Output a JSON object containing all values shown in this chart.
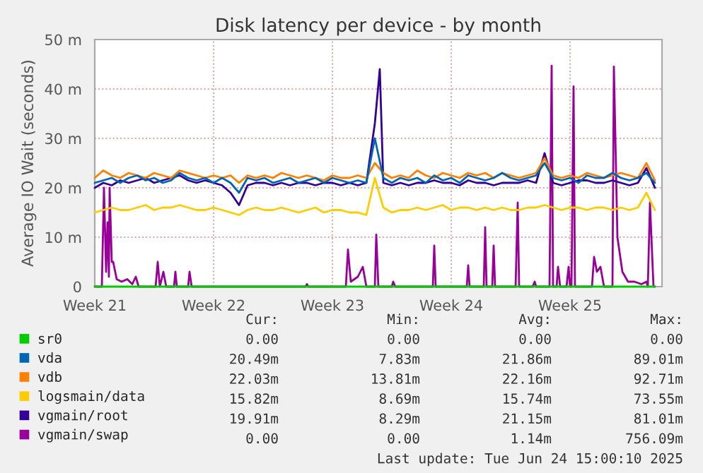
{
  "chart_data": {
    "type": "line",
    "title": "Disk latency per device - by month",
    "ylabel": "Average IO Wait (seconds)",
    "x": [
      "2025-05-19T00:00",
      "2025-05-19T12:00",
      "2025-05-20T00:00",
      "2025-05-20T12:00",
      "2025-05-21T00:00",
      "2025-05-21T12:00",
      "2025-05-22T00:00",
      "2025-05-22T12:00",
      "2025-05-23T00:00",
      "2025-05-23T12:00",
      "2025-05-24T00:00",
      "2025-05-24T12:00",
      "2025-05-25T00:00",
      "2025-05-25T12:00",
      "2025-05-26T00:00",
      "2025-05-26T12:00",
      "2025-05-27T00:00",
      "2025-05-27T12:00",
      "2025-05-28T00:00",
      "2025-05-28T12:00",
      "2025-05-29T00:00",
      "2025-05-29T12:00",
      "2025-05-30T00:00",
      "2025-05-30T12:00",
      "2025-05-31T00:00",
      "2025-05-31T12:00",
      "2025-06-01T00:00",
      "2025-06-01T12:00",
      "2025-06-02T00:00",
      "2025-06-02T12:00",
      "2025-06-03T00:00",
      "2025-06-03T12:00",
      "2025-06-04T00:00",
      "2025-06-04T12:00",
      "2025-06-05T00:00",
      "2025-06-05T12:00",
      "2025-06-06T00:00",
      "2025-06-06T12:00",
      "2025-06-07T00:00",
      "2025-06-07T12:00",
      "2025-06-08T00:00",
      "2025-06-08T12:00",
      "2025-06-09T00:00",
      "2025-06-09T12:00",
      "2025-06-10T00:00",
      "2025-06-10T12:00",
      "2025-06-11T00:00",
      "2025-06-11T12:00",
      "2025-06-12T00:00",
      "2025-06-12T12:00",
      "2025-06-13T00:00",
      "2025-06-13T12:00",
      "2025-06-14T00:00",
      "2025-06-14T12:00",
      "2025-06-15T00:00",
      "2025-06-15T12:00",
      "2025-06-16T00:00",
      "2025-06-16T12:00",
      "2025-06-17T00:00",
      "2025-06-17T12:00",
      "2025-06-18T00:00",
      "2025-06-18T12:00",
      "2025-06-19T00:00",
      "2025-06-19T12:00",
      "2025-06-20T00:00",
      "2025-06-20T12:00",
      "2025-06-21T00:00"
    ],
    "xlim": [
      "2025-05-19T00:00",
      "2025-06-21T10:00"
    ],
    "xticks": [
      {
        "value": "2025-05-19",
        "label": "Week 21"
      },
      {
        "value": "2025-05-26",
        "label": "Week 22"
      },
      {
        "value": "2025-06-02",
        "label": "Week 23"
      },
      {
        "value": "2025-06-09",
        "label": "Week 24"
      },
      {
        "value": "2025-06-16",
        "label": "Week 25"
      }
    ],
    "ylim": [
      0,
      50
    ],
    "yticks": [
      0,
      {
        "value": 10,
        "label": "10 m"
      },
      {
        "value": 20,
        "label": "20 m"
      },
      {
        "value": 30,
        "label": "30 m"
      },
      {
        "value": 40,
        "label": "40 m"
      },
      {
        "value": 50,
        "label": "50 m"
      }
    ],
    "grid": true,
    "legend": "bottom",
    "marker": "none",
    "line_style": "solid",
    "series": [
      {
        "name": "sr0",
        "color": "#00cc00",
        "values": [
          0,
          0,
          0,
          0,
          0,
          0,
          0,
          0,
          0,
          0,
          0,
          0,
          0,
          0,
          0,
          0,
          0,
          0,
          0,
          0,
          0,
          0,
          0,
          0,
          0,
          0,
          0,
          0,
          0,
          0,
          0,
          0,
          0,
          0,
          0,
          0,
          0,
          0,
          0,
          0,
          0,
          0,
          0,
          0,
          0,
          0,
          0,
          0,
          0,
          0,
          0,
          0,
          0,
          0,
          0,
          0,
          0,
          0,
          0,
          0,
          0,
          0,
          0,
          0,
          0,
          0,
          0
        ]
      },
      {
        "name": "vda",
        "color": "#0066b3",
        "values": [
          21,
          21.5,
          22,
          21,
          22,
          22.5,
          21.5,
          22,
          21,
          21.5,
          23,
          22,
          21.5,
          22,
          21,
          22,
          21,
          19,
          22,
          21.5,
          22,
          21,
          21.5,
          22,
          21,
          21.5,
          22,
          21,
          22,
          21.5,
          21,
          21.5,
          21,
          30,
          22,
          21,
          22,
          21.5,
          22,
          21,
          22.5,
          21.5,
          22,
          21,
          22.5,
          22,
          21.5,
          22,
          23,
          22,
          21.5,
          22,
          22.5,
          25,
          22,
          21.5,
          22,
          21,
          22.5,
          22,
          22,
          23,
          22,
          21.5,
          22,
          23,
          21
        ]
      },
      {
        "name": "vdb",
        "color": "#ff8000",
        "values": [
          22,
          23.5,
          22.5,
          22,
          23,
          22.5,
          22,
          23,
          22.5,
          22,
          23.5,
          23,
          22.5,
          22,
          22.5,
          22,
          22.5,
          21,
          22.5,
          22,
          22.5,
          22,
          23,
          22.5,
          22,
          22.5,
          22,
          21.5,
          22.5,
          22,
          22,
          22.5,
          22,
          25,
          23,
          22,
          22.5,
          22,
          23.5,
          22.5,
          22,
          23,
          22.5,
          22,
          23,
          22.5,
          23,
          22,
          23,
          22.5,
          22,
          22.5,
          23,
          26,
          22.5,
          22,
          22.5,
          22,
          23,
          22.5,
          22,
          22.5,
          23,
          22.5,
          22,
          25,
          21.5
        ]
      },
      {
        "name": "logsmain/data",
        "color": "#ffcc00",
        "values": [
          15,
          15.5,
          16,
          15.5,
          15.5,
          16,
          16.5,
          15.5,
          16,
          16,
          16.5,
          16,
          15.5,
          15.5,
          16,
          15.5,
          15,
          14.5,
          15.5,
          16,
          15.5,
          15.5,
          16,
          15.5,
          15,
          15.5,
          16,
          15,
          15.5,
          15.5,
          15,
          15,
          14.5,
          22,
          16,
          15,
          15.5,
          15.5,
          16,
          15.5,
          16,
          16.5,
          15.5,
          16,
          16,
          15.5,
          16,
          15.5,
          16,
          15.5,
          15.5,
          16,
          16,
          16.5,
          16,
          15.5,
          16,
          16,
          15.5,
          16,
          16,
          15.5,
          16,
          15.5,
          16,
          19,
          15.5
        ]
      },
      {
        "name": "vgmain/root",
        "color": "#330099",
        "x": [
          "2025-05-19T00:00",
          "2025-05-19T12:00",
          "2025-05-20T00:00",
          "2025-05-20T12:00",
          "2025-05-21T00:00",
          "2025-05-21T12:00",
          "2025-05-22T00:00",
          "2025-05-22T12:00",
          "2025-05-23T00:00",
          "2025-05-23T12:00",
          "2025-05-24T00:00",
          "2025-05-24T12:00",
          "2025-05-25T00:00",
          "2025-05-25T12:00",
          "2025-05-26T00:00",
          "2025-05-26T12:00",
          "2025-05-27T00:00",
          "2025-05-27T12:00",
          "2025-05-28T00:00",
          "2025-05-28T12:00",
          "2025-05-29T00:00",
          "2025-05-29T12:00",
          "2025-05-30T00:00",
          "2025-05-30T12:00",
          "2025-05-31T00:00",
          "2025-05-31T12:00",
          "2025-06-01T00:00",
          "2025-06-01T12:00",
          "2025-06-02T00:00",
          "2025-06-02T12:00",
          "2025-06-03T00:00",
          "2025-06-03T12:00",
          "2025-06-04T00:00",
          "2025-06-04T12:00",
          "2025-06-04T19:00",
          "2025-06-05T00:00",
          "2025-06-05T12:00",
          "2025-06-06T00:00",
          "2025-06-06T12:00",
          "2025-06-07T00:00",
          "2025-06-07T12:00",
          "2025-06-08T00:00",
          "2025-06-08T12:00",
          "2025-06-09T00:00",
          "2025-06-09T12:00",
          "2025-06-10T00:00",
          "2025-06-10T12:00",
          "2025-06-11T00:00",
          "2025-06-11T12:00",
          "2025-06-12T00:00",
          "2025-06-12T12:00",
          "2025-06-13T00:00",
          "2025-06-13T12:00",
          "2025-06-14T00:00",
          "2025-06-14T12:00",
          "2025-06-15T00:00",
          "2025-06-15T12:00",
          "2025-06-16T00:00",
          "2025-06-16T12:00",
          "2025-06-17T00:00",
          "2025-06-17T12:00",
          "2025-06-18T00:00",
          "2025-06-18T12:00",
          "2025-06-19T00:00",
          "2025-06-19T12:00",
          "2025-06-20T00:00",
          "2025-06-20T12:00",
          "2025-06-21T00:00"
        ],
        "values": [
          20,
          21,
          20.5,
          21.5,
          21,
          21.5,
          22,
          21,
          21.5,
          22,
          22.5,
          21.5,
          21,
          21.5,
          21,
          20.5,
          19,
          16.5,
          20.5,
          21,
          21,
          20.5,
          21,
          20.5,
          21,
          21,
          20.5,
          21,
          21,
          20.5,
          21,
          20.5,
          21,
          33,
          44,
          21,
          20.5,
          21,
          20.5,
          21,
          21,
          21.5,
          21,
          21,
          20.5,
          21.5,
          21,
          21,
          20.5,
          21,
          21,
          21,
          21.5,
          21,
          27,
          21,
          20.5,
          21,
          21.5,
          21.5,
          21,
          21,
          21.5,
          21,
          20.5,
          21,
          24,
          20
        ]
      },
      {
        "name": "vgmain/swap",
        "color": "#990099",
        "x": [
          "2025-05-19T00:00",
          "2025-05-19T10:00",
          "2025-05-19T13:00",
          "2025-05-19T16:00",
          "2025-05-19T18:00",
          "2025-05-19T20:00",
          "2025-05-19T21:00",
          "2025-05-20T00:00",
          "2025-05-20T02:00",
          "2025-05-20T07:00",
          "2025-05-20T14:00",
          "2025-05-20T22:00",
          "2025-05-21T05:00",
          "2025-05-21T10:00",
          "2025-05-21T14:00",
          "2025-05-22T14:00",
          "2025-05-22T17:00",
          "2025-05-22T20:00",
          "2025-05-23T01:00",
          "2025-05-23T05:00",
          "2025-05-23T16:00",
          "2025-05-23T18:00",
          "2025-05-23T20:00",
          "2025-05-24T12:00",
          "2025-05-24T14:00",
          "2025-05-24T17:00",
          "2025-05-31T10:00",
          "2025-05-31T12:00",
          "2025-05-31T14:00",
          "2025-06-02T19:00",
          "2025-06-02T22:00",
          "2025-06-03T02:00",
          "2025-06-03T12:00",
          "2025-06-03T19:00",
          "2025-06-04T00:00",
          "2025-06-04T12:00",
          "2025-06-04T14:00",
          "2025-06-04T17:00",
          "2025-06-05T12:00",
          "2025-06-05T14:00",
          "2025-06-05T17:00",
          "2025-06-07T22:00",
          "2025-06-08T00:00",
          "2025-06-08T02:00",
          "2025-06-09T22:00",
          "2025-06-10T00:00",
          "2025-06-10T02:00",
          "2025-06-10T22:00",
          "2025-06-11T00:00",
          "2025-06-11T02:00",
          "2025-06-11T10:00",
          "2025-06-11T12:00",
          "2025-06-11T14:00",
          "2025-06-12T19:00",
          "2025-06-12T22:00",
          "2025-06-13T00:00",
          "2025-06-13T19:00",
          "2025-06-13T22:00",
          "2025-06-14T00:00",
          "2025-06-14T19:00",
          "2025-06-14T22:00",
          "2025-06-15T00:00",
          "2025-06-15T05:00",
          "2025-06-15T07:00",
          "2025-06-15T10:00",
          "2025-06-15T19:00",
          "2025-06-15T22:00",
          "2025-06-16T00:00",
          "2025-06-16T02:00",
          "2025-06-16T05:00",
          "2025-06-16T07:00",
          "2025-06-17T07:00",
          "2025-06-17T10:00",
          "2025-06-17T14:00",
          "2025-06-17T19:00",
          "2025-06-18T00:00",
          "2025-06-18T12:00",
          "2025-06-18T14:00",
          "2025-06-18T19:00",
          "2025-06-19T02:00",
          "2025-06-19T10:00",
          "2025-06-19T19:00",
          "2025-06-20T05:00",
          "2025-06-20T12:00",
          "2025-06-20T14:00",
          "2025-06-20T17:00",
          "2025-06-20T22:00",
          "2025-06-21T00:00"
        ],
        "values": [
          0,
          0,
          20,
          3,
          13,
          2,
          20,
          5,
          5,
          1.5,
          1,
          1.5,
          0.5,
          2,
          0,
          0,
          5,
          0,
          3,
          0,
          0,
          3,
          0,
          0,
          3,
          0,
          0,
          0.5,
          0,
          0,
          7.5,
          1,
          2,
          4,
          0,
          0,
          10.5,
          0,
          0,
          1,
          0,
          0,
          8.3,
          0,
          0,
          4.3,
          0,
          0,
          12,
          0,
          0,
          8.3,
          0,
          0,
          17,
          0,
          0,
          1,
          0,
          0,
          44.7,
          0,
          0,
          4,
          0,
          0,
          4,
          0,
          0,
          40.5,
          0,
          0,
          6,
          3,
          4,
          0,
          0,
          44.5,
          10,
          3,
          1,
          1,
          0.5,
          1,
          0,
          17,
          0,
          0
        ]
      }
    ],
    "annotations": [
      "Cur:",
      "Min:",
      "Avg:",
      "Max:",
      "0.00",
      "0.00",
      "0.00",
      "0.00",
      "20.49m",
      "7.83m",
      "21.86m",
      "89.01m",
      "22.03m",
      "13.81m",
      "22.16m",
      "92.71m",
      "15.82m",
      "8.69m",
      "15.74m",
      "73.55m",
      "19.91m",
      "8.29m",
      "21.15m",
      "81.01m",
      "0.00",
      "0.00",
      "1.14m",
      "756.09m",
      "Last update: Tue Jun 24 15:00:10 2025"
    ]
  }
}
